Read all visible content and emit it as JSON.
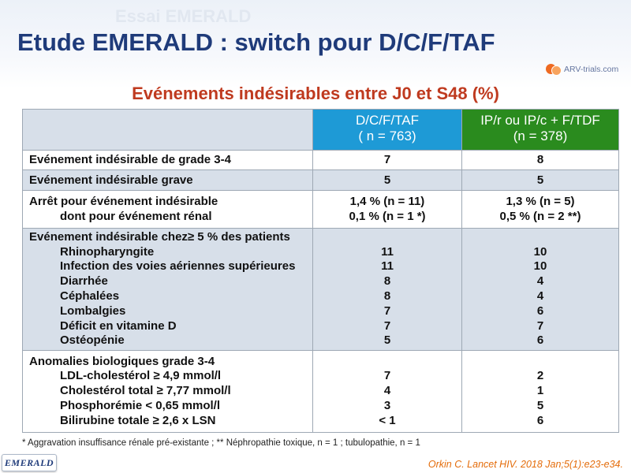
{
  "watermark": "Essai EMERALD",
  "title": "Etude EMERALD : switch pour D/C/F/TAF",
  "logo": {
    "text": "ARV-trials.com",
    "icon": "arv-trials-logo-icon"
  },
  "subtitle": "Evénements indésirables entre J0 et S48 (%)",
  "table": {
    "header": {
      "dcftaf": [
        "D/C/F/TAF",
        "( n = 763)"
      ],
      "comparator": [
        "IP/r ou IP/c + F/TDF",
        "(n = 378)"
      ]
    },
    "rows": [
      {
        "label": "Evénement indésirable de grade 3-4",
        "dcftaf": "7",
        "comparator": "8"
      },
      {
        "label": "Evénement indésirable grave",
        "dcftaf": "5",
        "comparator": "5"
      },
      {
        "label": "Arrêt pour événement indésirable",
        "dcftaf": "1,4 % (n = 11)",
        "comparator": "1,3 % (n = 5)",
        "items": [
          {
            "label": "dont pour événement rénal",
            "dcftaf": "0,1 % (n = 1 *)",
            "comparator": "0,5 % (n = 2 **)"
          }
        ]
      },
      {
        "label": "Evénement indésirable chez≥ 5 % des patients",
        "items": [
          {
            "label": "Rhinopharyngite",
            "dcftaf": "11",
            "comparator": "10"
          },
          {
            "label": "Infection des voies aériennes supérieures",
            "dcftaf": "11",
            "comparator": "10"
          },
          {
            "label": "Diarrhée",
            "dcftaf": "8",
            "comparator": "4"
          },
          {
            "label": "Céphalées",
            "dcftaf": "8",
            "comparator": "4"
          },
          {
            "label": "Lombalgies",
            "dcftaf": "7",
            "comparator": "6"
          },
          {
            "label": "Déficit en vitamine D",
            "dcftaf": "7",
            "comparator": "7"
          },
          {
            "label": "Ostéopénie",
            "dcftaf": "5",
            "comparator": "6"
          }
        ]
      },
      {
        "label": "Anomalies biologiques grade 3-4",
        "items": [
          {
            "label": "LDL-cholestérol ≥ 4,9 mmol/l",
            "dcftaf": "7",
            "comparator": "2"
          },
          {
            "label": "Cholestérol total ≥ 7,77 mmol/l",
            "dcftaf": "4",
            "comparator": "1"
          },
          {
            "label": "Phosphorémie < 0,65 mmol/l",
            "dcftaf": "3",
            "comparator": "5"
          },
          {
            "label": "Bilirubine totale ≥ 2,6 x LSN",
            "dcftaf": "< 1",
            "comparator": "6"
          }
        ]
      }
    ]
  },
  "footnote": "* Aggravation insuffisance rénale pré-existante ; ** Néphropathie toxique, n = 1 ; tubulopathie, n = 1",
  "study_badge": "EMERALD",
  "citation": "Orkin C. Lancet HIV. 2018 Jan;5(1):e23-e34.",
  "colors": {
    "title": "#1F3B7A",
    "subtitle": "#BF3A1F",
    "header_dcftaf": "#1E9AD6",
    "header_comparator": "#2A8B1E",
    "band": "#D7DFE9",
    "citation": "#E46C0A"
  }
}
